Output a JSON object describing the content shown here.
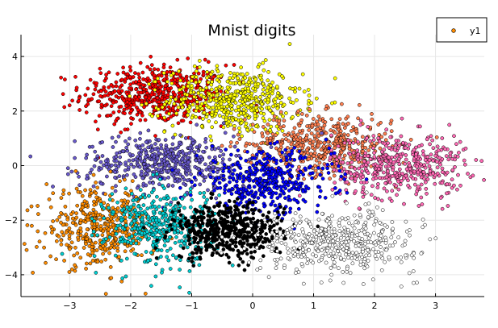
{
  "chart_data": {
    "type": "scatter",
    "title": "Mnist digits",
    "xlabel": "",
    "ylabel": "",
    "xlim": [
      -3.8,
      3.8
    ],
    "ylim": [
      -4.8,
      4.8
    ],
    "xticks": [
      -3,
      -2,
      -1,
      0,
      1,
      2,
      3
    ],
    "yticks": [
      -4,
      -2,
      0,
      2,
      4
    ],
    "grid": true,
    "legend": {
      "position": "top-right",
      "entries": [
        {
          "label": "y1",
          "color": "#ff8c00"
        }
      ]
    },
    "clusters": [
      {
        "color": "#ff0000",
        "center": [
          -1.6,
          2.6
        ],
        "spread": [
          0.6,
          0.55
        ],
        "count": 520
      },
      {
        "color": "#ffff00",
        "center": [
          -0.3,
          2.4
        ],
        "spread": [
          0.55,
          0.6
        ],
        "count": 520
      },
      {
        "color": "#ff7f50",
        "center": [
          1.1,
          0.8
        ],
        "spread": [
          0.6,
          0.55
        ],
        "count": 460
      },
      {
        "color": "#ff69b4",
        "center": [
          2.4,
          0.0
        ],
        "spread": [
          0.55,
          0.6
        ],
        "count": 460
      },
      {
        "color": "#6a5acd",
        "center": [
          -1.4,
          0.1
        ],
        "spread": [
          0.7,
          0.5
        ],
        "count": 500
      },
      {
        "color": "#0000ff",
        "center": [
          0.2,
          -0.6
        ],
        "spread": [
          0.55,
          0.55
        ],
        "count": 420
      },
      {
        "color": "#ff8c00",
        "center": [
          -2.5,
          -2.3
        ],
        "spread": [
          0.45,
          0.7
        ],
        "count": 420
      },
      {
        "color": "#00ced1",
        "center": [
          -1.5,
          -2.2
        ],
        "spread": [
          0.45,
          0.7
        ],
        "count": 420
      },
      {
        "color": "#000000",
        "center": [
          -0.4,
          -2.4
        ],
        "spread": [
          0.45,
          0.5
        ],
        "count": 500
      },
      {
        "color": "#ffffff",
        "center": [
          1.4,
          -2.8
        ],
        "spread": [
          0.65,
          0.55
        ],
        "count": 460
      }
    ]
  }
}
